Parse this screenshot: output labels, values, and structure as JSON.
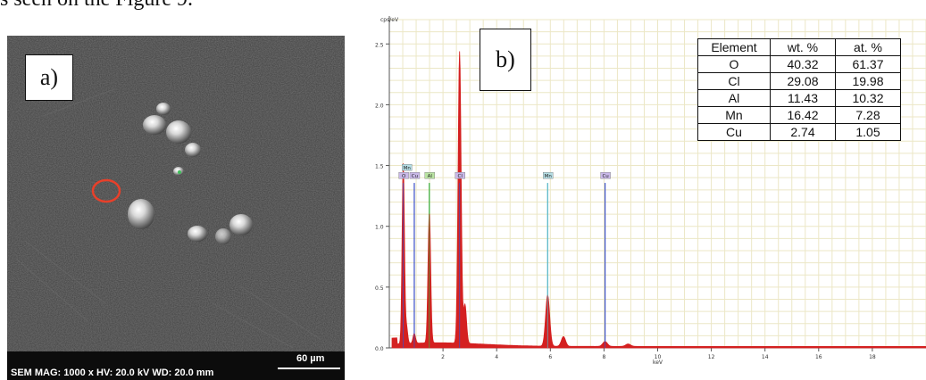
{
  "caption_fragment": "s seen on the Figure 9.",
  "panel_a": {
    "label": "a)",
    "info_text": "SEM  MAG: 1000 x  HV: 20.0 kV  WD: 20.0 mm",
    "scale_bar": "60 µm",
    "marker_color": "#e8402a"
  },
  "panel_b": {
    "label": "b)",
    "table": {
      "headers": [
        "Element",
        "wt. %",
        "at. %"
      ],
      "rows": [
        [
          "O",
          "40.32",
          "61.37"
        ],
        [
          "Cl",
          "29.08",
          "19.98"
        ],
        [
          "Al",
          "11.43",
          "10.32"
        ],
        [
          "Mn",
          "16.42",
          "7.28"
        ],
        [
          "Cu",
          "2.74",
          "1.05"
        ]
      ]
    }
  },
  "chart_data": {
    "type": "line",
    "xlabel": "keV",
    "ylabel": "cps/eV",
    "xlim": [
      0,
      20
    ],
    "ylim": [
      0,
      2.7
    ],
    "x_ticks": [
      2,
      4,
      6,
      8,
      10,
      12,
      14,
      16,
      18
    ],
    "y_ticks": [
      0.0,
      0.5,
      1.0,
      1.5,
      2.0,
      2.5
    ],
    "grid": true,
    "colors": {
      "spectrum": "#d42020",
      "grid": "#ece7c6",
      "marker_line_blue": "#3a4fc9",
      "marker_line_green": "#3fae3f",
      "marker_line_cyan": "#58b8c8"
    },
    "peaks": [
      {
        "element": "O",
        "energy": 0.52,
        "height": 1.48
      },
      {
        "element": "Mn",
        "energy": 0.64,
        "height": 0.14
      },
      {
        "element": "Cu",
        "energy": 0.93,
        "height": 0.08
      },
      {
        "element": "Al",
        "energy": 1.49,
        "height": 1.08
      },
      {
        "element": "Cl",
        "energy": 2.62,
        "height": 2.4
      },
      {
        "element": "Cl",
        "energy": 2.82,
        "height": 0.32
      },
      {
        "element": "Mn",
        "energy": 5.9,
        "height": 0.42
      },
      {
        "element": "Mn",
        "energy": 6.49,
        "height": 0.08
      },
      {
        "element": "Cu",
        "energy": 8.04,
        "height": 0.04
      },
      {
        "element": "Cu",
        "energy": 8.9,
        "height": 0.02
      }
    ],
    "element_markers": [
      {
        "element": "Mn",
        "energy": 0.64,
        "row": 0,
        "color": "#b5dde4",
        "line": "#58b8c8",
        "height": 1.4
      },
      {
        "element": "O",
        "energy": 0.52,
        "row": 1,
        "color": "#c9b8e8",
        "line": "#3a4fc9",
        "height": 1.4
      },
      {
        "element": "Cu",
        "energy": 0.93,
        "row": 1,
        "color": "#c9b8e8",
        "line": "#3a4fc9",
        "height": 1.4
      },
      {
        "element": "Al",
        "energy": 1.49,
        "row": 1,
        "color": "#b9e3a2",
        "line": "#3fae3f",
        "height": 1.4
      },
      {
        "element": "Cl",
        "energy": 2.62,
        "row": 1,
        "color": "#c9b8e8",
        "line": "#3a4fc9",
        "height": 1.4
      },
      {
        "element": "Mn",
        "energy": 5.9,
        "row": 1,
        "color": "#b5dde4",
        "line": "#58b8c8",
        "height": 1.4
      },
      {
        "element": "Cu",
        "energy": 8.04,
        "row": 1,
        "color": "#c9b8e8",
        "line": "#3a4fc9",
        "height": 1.4
      }
    ]
  }
}
